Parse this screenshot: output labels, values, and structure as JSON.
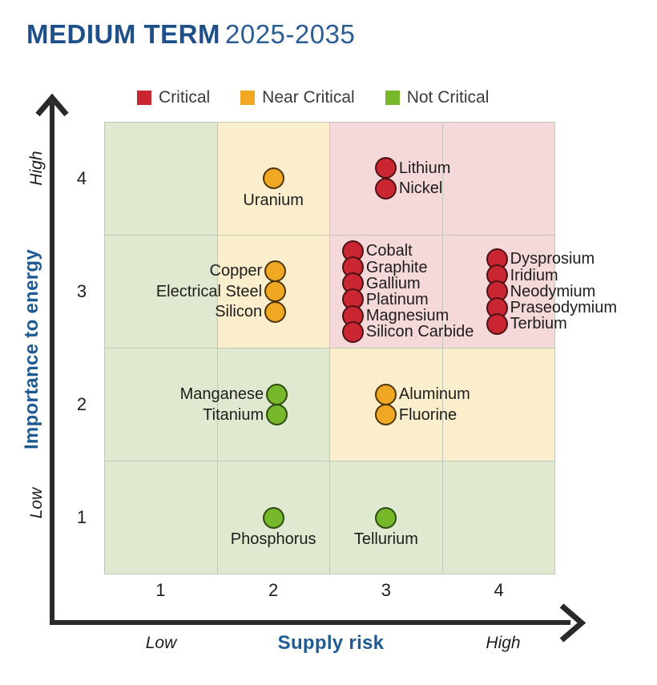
{
  "title": {
    "main": "MEDIUM TERM",
    "period": "2025-2035"
  },
  "legend": [
    {
      "label": "Critical",
      "status": "critical"
    },
    {
      "label": "Near Critical",
      "status": "near"
    },
    {
      "label": "Not Critical",
      "status": "not"
    }
  ],
  "axes": {
    "x": {
      "label": "Supply risk",
      "low": "Low",
      "high": "High",
      "ticks": [
        "1",
        "2",
        "3",
        "4"
      ]
    },
    "y": {
      "label": "Importance to energy",
      "low": "Low",
      "high": "High",
      "ticks": [
        "4",
        "3",
        "2",
        "1"
      ]
    }
  },
  "chart_data": {
    "type": "scatter",
    "title": "MEDIUM TERM 2025-2035",
    "xlabel": "Supply risk",
    "ylabel": "Importance to energy",
    "xlim": [
      0.5,
      4.5
    ],
    "ylim": [
      0.5,
      4.5
    ],
    "grid": true,
    "legend_position": "top",
    "zone_colors": {
      "green": "#dfe9d0",
      "cream": "#fbeecd",
      "pink": "#f5d8da"
    },
    "cell_zones_top_to_bottom": [
      [
        "green",
        "cream",
        "pink",
        "pink"
      ],
      [
        "green",
        "cream",
        "pink",
        "pink"
      ],
      [
        "green",
        "green",
        "cream",
        "cream"
      ],
      [
        "green",
        "green",
        "green",
        "green"
      ]
    ],
    "status_styles": {
      "critical": {
        "fill": "#c92632",
        "stroke": "#4f1116"
      },
      "near": {
        "fill": "#f0a722",
        "stroke": "#4d3508"
      },
      "not": {
        "fill": "#76b82a",
        "stroke": "#2f4a10"
      }
    },
    "groups": [
      {
        "x": 2,
        "y": 4,
        "status": "near",
        "label_side": "below",
        "dx": 0,
        "items": [
          "Uranium"
        ]
      },
      {
        "x": 3,
        "y": 4,
        "status": "critical",
        "label_side": "right",
        "dx": 0,
        "items": [
          "Lithium",
          "Nickel"
        ]
      },
      {
        "x": 2,
        "y": 3,
        "status": "near",
        "label_side": "left",
        "dx": 2,
        "items": [
          "Copper",
          "Electrical Steel",
          "Silicon"
        ]
      },
      {
        "x": 3,
        "y": 3,
        "status": "critical",
        "label_side": "right",
        "dx": -41,
        "items": [
          "Cobalt",
          "Graphite",
          "Gallium",
          "Platinum",
          "Magnesium",
          "Silicon Carbide"
        ]
      },
      {
        "x": 4,
        "y": 3,
        "status": "critical",
        "label_side": "right",
        "dx": -2,
        "items": [
          "Dysprosium",
          "Iridium",
          "Neodymium",
          "Praseodymium",
          "Terbium"
        ]
      },
      {
        "x": 2,
        "y": 2,
        "status": "not",
        "label_side": "left",
        "dx": 4,
        "items": [
          "Manganese",
          "Titanium"
        ]
      },
      {
        "x": 3,
        "y": 2,
        "status": "near",
        "label_side": "right",
        "dx": 0,
        "items": [
          "Aluminum",
          "Fluorine"
        ]
      },
      {
        "x": 2,
        "y": 1,
        "status": "not",
        "label_side": "below",
        "dx": 0,
        "items": [
          "Phosphorus"
        ]
      },
      {
        "x": 3,
        "y": 1,
        "status": "not",
        "label_side": "below",
        "dx": 0,
        "items": [
          "Tellurium"
        ]
      }
    ]
  }
}
